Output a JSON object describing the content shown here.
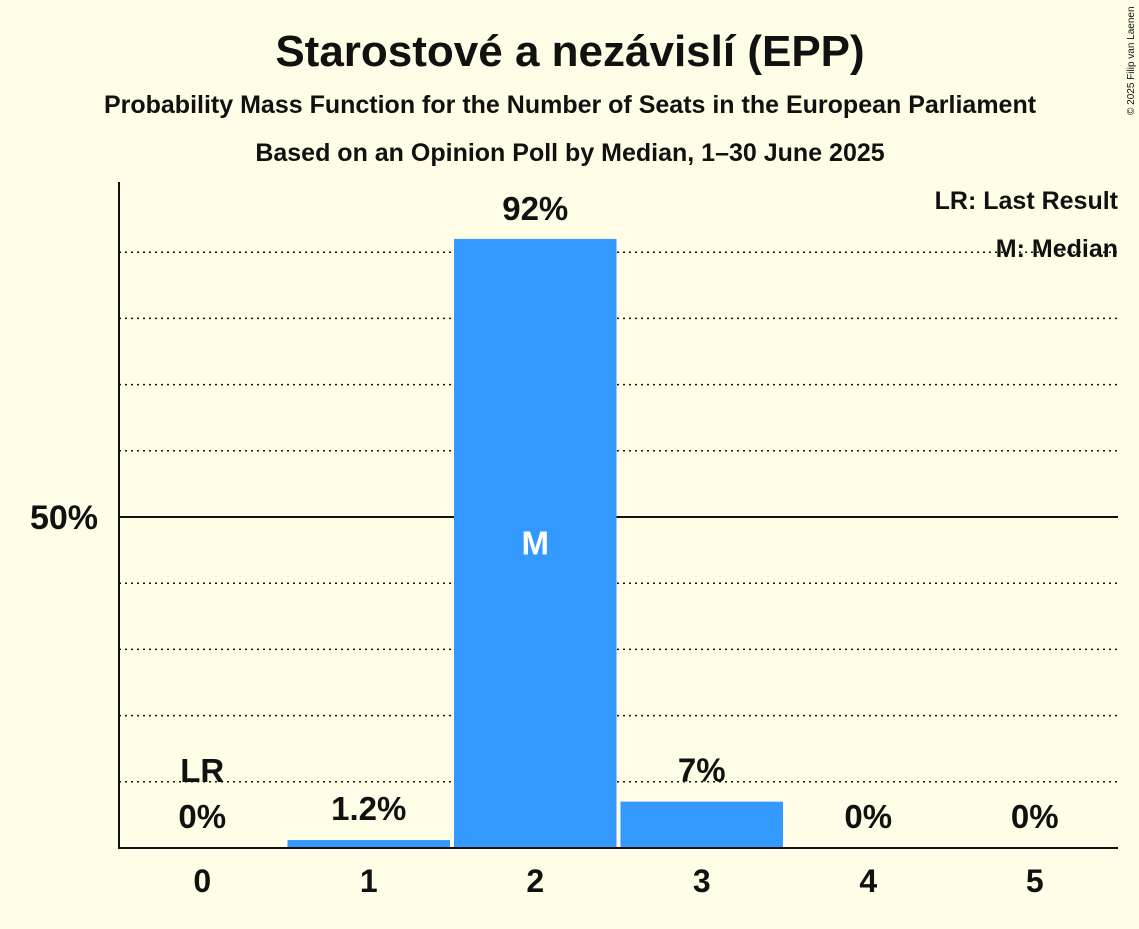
{
  "chart_data": {
    "type": "bar",
    "title": "Starostové a nezávislí (EPP)",
    "subtitle1": "Probability Mass Function for the Number of Seats in the European Parliament",
    "subtitle2": "Based on an Opinion Poll by Median, 1–30 June 2025",
    "copyright": "© 2025 Filip van Laenen",
    "categories": [
      "0",
      "1",
      "2",
      "3",
      "4",
      "5"
    ],
    "values": [
      0,
      1.2,
      92,
      7,
      0,
      0
    ],
    "value_labels": [
      "0%",
      "1.2%",
      "92%",
      "7%",
      "0%",
      "0%"
    ],
    "ylim": [
      0,
      100
    ],
    "yticks": [
      {
        "value": 50,
        "label": "50%"
      }
    ],
    "gridlines": [
      10,
      20,
      30,
      40,
      60,
      70,
      80,
      90
    ],
    "bar_color": "#3399ff",
    "last_result_index": 0,
    "last_result_marker": "LR",
    "median_index": 2,
    "median_marker": "M",
    "legend": [
      "LR: Last Result",
      "M: Median"
    ],
    "legend_position": "top-right"
  }
}
